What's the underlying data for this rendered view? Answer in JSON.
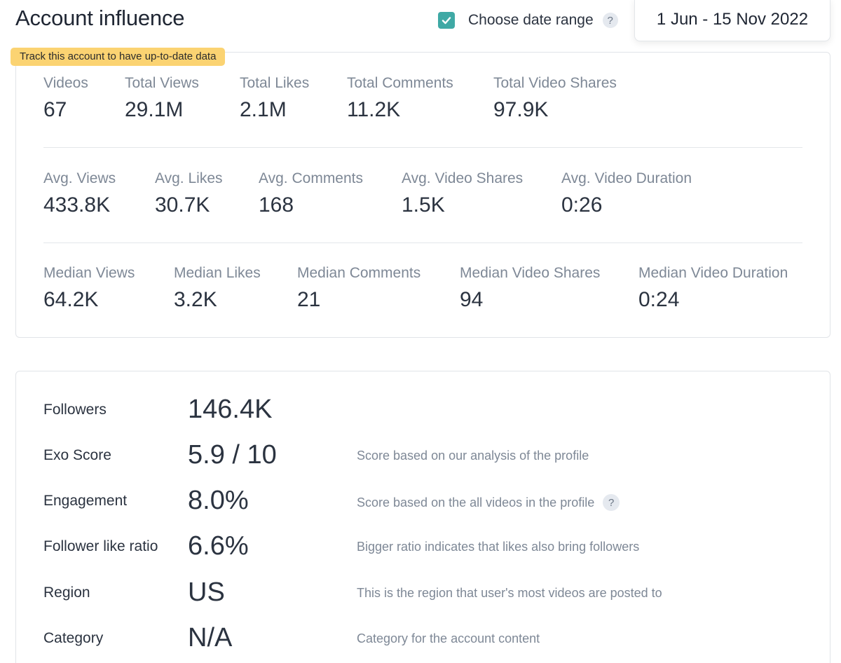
{
  "header": {
    "title": "Account influence",
    "date_range_label": "Choose date range",
    "help_symbol": "?",
    "date_range_value": "1 Jun - 15 Nov 2022",
    "date_range_checked": true
  },
  "track_badge": "Track this account to have up-to-date data",
  "stats": {
    "totals": [
      {
        "label": "Videos",
        "value": "67"
      },
      {
        "label": "Total Views",
        "value": "29.1M"
      },
      {
        "label": "Total Likes",
        "value": "2.1M"
      },
      {
        "label": "Total Comments",
        "value": "11.2K"
      },
      {
        "label": "Total Video Shares",
        "value": "97.9K"
      }
    ],
    "averages": [
      {
        "label": "Avg. Views",
        "value": "433.8K"
      },
      {
        "label": "Avg. Likes",
        "value": "30.7K"
      },
      {
        "label": "Avg. Comments",
        "value": "168"
      },
      {
        "label": "Avg. Video Shares",
        "value": "1.5K"
      },
      {
        "label": "Avg. Video Duration",
        "value": "0:26"
      }
    ],
    "medians": [
      {
        "label": "Median Views",
        "value": "64.2K"
      },
      {
        "label": "Median Likes",
        "value": "3.2K"
      },
      {
        "label": "Median Comments",
        "value": "21"
      },
      {
        "label": "Median Video Shares",
        "value": "94"
      },
      {
        "label": "Median Video Duration",
        "value": "0:24"
      }
    ]
  },
  "profile": [
    {
      "label": "Followers",
      "value": "146.4K",
      "desc": ""
    },
    {
      "label": "Exo Score",
      "value": "5.9 / 10",
      "desc": "Score based on our analysis of the profile"
    },
    {
      "label": "Engagement",
      "value": "8.0%",
      "desc": "Score based on the all videos in the profile",
      "help": "?"
    },
    {
      "label": "Follower like ratio",
      "value": "6.6%",
      "desc": "Bigger ratio indicates that likes also bring followers"
    },
    {
      "label": "Region",
      "value": "US",
      "desc": "This is the region that user's most videos are posted to"
    },
    {
      "label": "Category",
      "value": "N/A",
      "desc": "Category for the account content"
    }
  ],
  "colors": {
    "accent": "#3fa9a5",
    "badge": "#fbd372",
    "muted_text": "#7e8896",
    "text": "#2b3340"
  }
}
